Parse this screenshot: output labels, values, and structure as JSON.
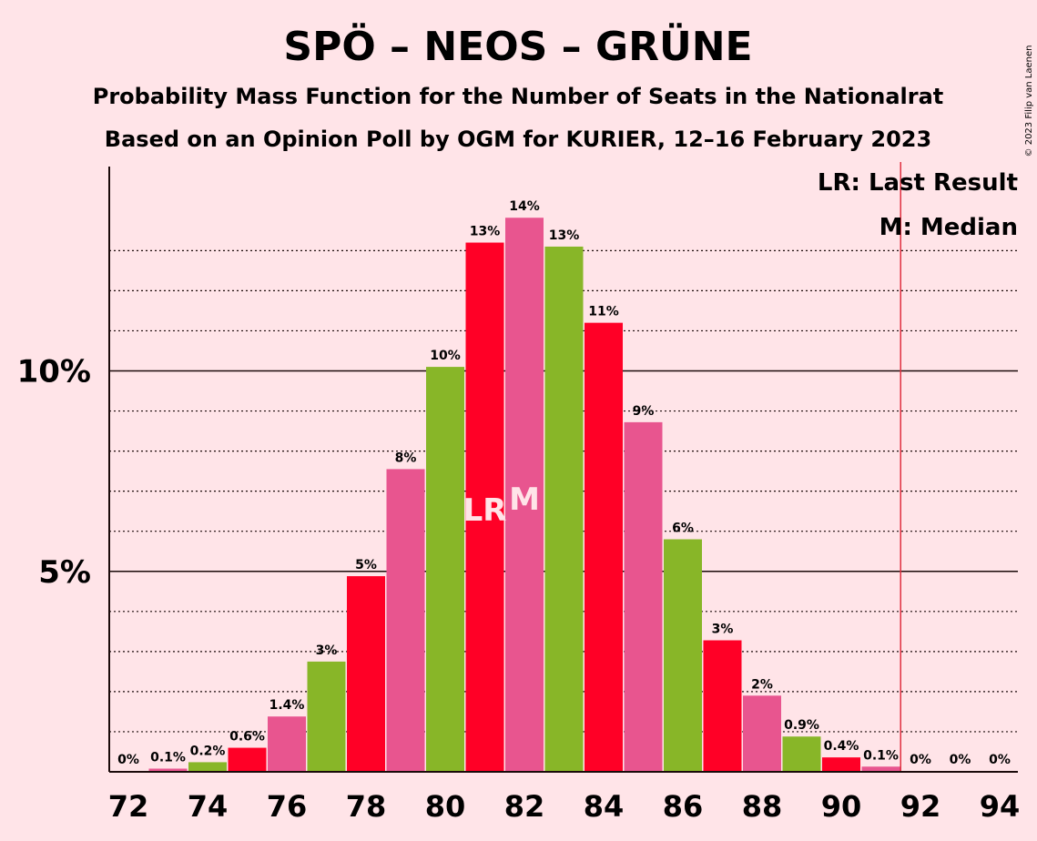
{
  "chart_data": {
    "type": "bar",
    "title": "SPÖ – NEOS – GRÜNE",
    "subtitle": "Probability Mass Function for the Number of Seats in the Nationalrat",
    "subtitle2": "Based on an Opinion Poll by OGM for KURIER, 12–16 February 2023",
    "copyright": "© 2023 Filip van Laenen",
    "xlabel": "",
    "ylabel": "",
    "ylim": [
      0,
      15
    ],
    "xlim": [
      72,
      94
    ],
    "x_ticks": [
      72,
      74,
      76,
      78,
      80,
      82,
      84,
      86,
      88,
      90,
      92,
      94
    ],
    "x_tick_labels": [
      "72",
      "74",
      "76",
      "78",
      "80",
      "82",
      "84",
      "86",
      "88",
      "90",
      "92",
      "94"
    ],
    "y_ticks_major": [
      5,
      10
    ],
    "y_tick_labels": [
      "5%",
      "10%"
    ],
    "grid": true,
    "legend": {
      "position": "top-right",
      "items": [
        "LR: Last Result",
        "M: Median"
      ]
    },
    "last_result": 81,
    "median": 82,
    "majority_line": 91.5,
    "mark_labels": {
      "last_result": "LR",
      "median": "M"
    },
    "colors": {
      "spo": "#FF0026",
      "neos": "#E8558F",
      "grune": "#88B628",
      "majority": "#E03040",
      "background": "#FFE4E8"
    },
    "bars": [
      {
        "seats": 72,
        "value": 0,
        "label": "0%",
        "party": "spo"
      },
      {
        "seats": 73,
        "value": 0.08,
        "label": "0.1%",
        "party": "neos"
      },
      {
        "seats": 74,
        "value": 0.24,
        "label": "0.2%",
        "party": "grune"
      },
      {
        "seats": 75,
        "value": 0.6,
        "label": "0.6%",
        "party": "spo"
      },
      {
        "seats": 76,
        "value": 1.38,
        "label": "1.4%",
        "party": "neos"
      },
      {
        "seats": 77,
        "value": 2.75,
        "label": "3%",
        "party": "grune"
      },
      {
        "seats": 78,
        "value": 4.88,
        "label": "5%",
        "party": "spo"
      },
      {
        "seats": 79,
        "value": 7.55,
        "label": "8%",
        "party": "neos"
      },
      {
        "seats": 80,
        "value": 10.1,
        "label": "10%",
        "party": "grune"
      },
      {
        "seats": 81,
        "value": 13.2,
        "label": "13%",
        "party": "spo"
      },
      {
        "seats": 82,
        "value": 13.82,
        "label": "14%",
        "party": "neos"
      },
      {
        "seats": 83,
        "value": 13.1,
        "label": "13%",
        "party": "grune"
      },
      {
        "seats": 84,
        "value": 11.2,
        "label": "11%",
        "party": "spo"
      },
      {
        "seats": 85,
        "value": 8.72,
        "label": "9%",
        "party": "neos"
      },
      {
        "seats": 86,
        "value": 5.8,
        "label": "6%",
        "party": "grune"
      },
      {
        "seats": 87,
        "value": 3.28,
        "label": "3%",
        "party": "spo"
      },
      {
        "seats": 88,
        "value": 1.9,
        "label": "2%",
        "party": "neos"
      },
      {
        "seats": 89,
        "value": 0.88,
        "label": "0.9%",
        "party": "grune"
      },
      {
        "seats": 90,
        "value": 0.36,
        "label": "0.4%",
        "party": "spo"
      },
      {
        "seats": 91,
        "value": 0.13,
        "label": "0.1%",
        "party": "neos"
      },
      {
        "seats": 92,
        "value": 0,
        "label": "0%",
        "party": "grune"
      },
      {
        "seats": 93,
        "value": 0,
        "label": "0%",
        "party": "spo"
      },
      {
        "seats": 94,
        "value": 0,
        "label": "0%",
        "party": "neos"
      }
    ]
  }
}
